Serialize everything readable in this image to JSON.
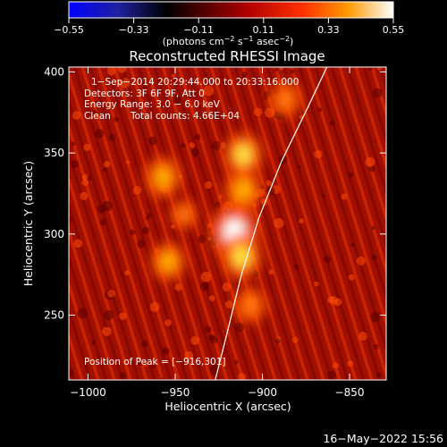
{
  "chart_data": {
    "type": "heatmap",
    "title": "Reconstructed RHESSI Image",
    "xlabel": "Heliocentric X (arcsec)",
    "ylabel": "Heliocentric Y (arcsec)",
    "xlim": [
      -1011,
      -829
    ],
    "ylim": [
      210,
      403
    ],
    "x_ticks": [
      -1000,
      -950,
      -900,
      -850
    ],
    "x_tick_labels": [
      "−1000",
      "−950",
      "−900",
      "−850"
    ],
    "y_ticks": [
      250,
      300,
      350,
      400
    ],
    "y_tick_labels": [
      "250",
      "300",
      "350",
      "400"
    ],
    "colorbar": {
      "range": [
        -0.55,
        0.55
      ],
      "ticks": [
        -0.55,
        -0.33,
        -0.11,
        0.11,
        0.33,
        0.55
      ],
      "tick_labels": [
        "−0.55",
        "−0.33",
        "−0.11",
        "0.11",
        "0.33",
        "0.55"
      ],
      "unit_parts": [
        "(photons cm",
        "−2",
        " s",
        "−1",
        " asec",
        "−2",
        ")"
      ],
      "colormap": "RHESSI color table 3 (blue-black-red-yellow-white)"
    },
    "annotations": [
      "1−Sep−2014 20:29:44.000 to 20:33:16.000",
      "Detectors: 3F 6F 9F, Att 0",
      "Energy Range: 3.0 − 6.0 keV",
      "Clean",
      "Total counts: 4.66E+04",
      "Position of Peak = [−916,301]"
    ],
    "sources": [
      {
        "x": -916,
        "y": 301,
        "intensity": 0.55
      },
      {
        "x": -912,
        "y": 286,
        "intensity": 0.42
      },
      {
        "x": -911,
        "y": 327,
        "intensity": 0.38
      },
      {
        "x": -911,
        "y": 349,
        "intensity": 0.4
      },
      {
        "x": -957,
        "y": 335,
        "intensity": 0.36
      },
      {
        "x": -954,
        "y": 283,
        "intensity": 0.34
      },
      {
        "x": -887,
        "y": 383,
        "intensity": 0.3
      },
      {
        "x": -907,
        "y": 256,
        "intensity": 0.3
      },
      {
        "x": -945,
        "y": 312,
        "intensity": 0.22
      }
    ],
    "limb_curve": [
      [
        -927,
        210
      ],
      [
        -920,
        240
      ],
      [
        -912,
        275
      ],
      [
        -902,
        310
      ],
      [
        -889,
        345
      ],
      [
        -874,
        378
      ],
      [
        -863,
        403
      ]
    ],
    "grid": false
  },
  "timestamp": "16−May−2022 15:56"
}
